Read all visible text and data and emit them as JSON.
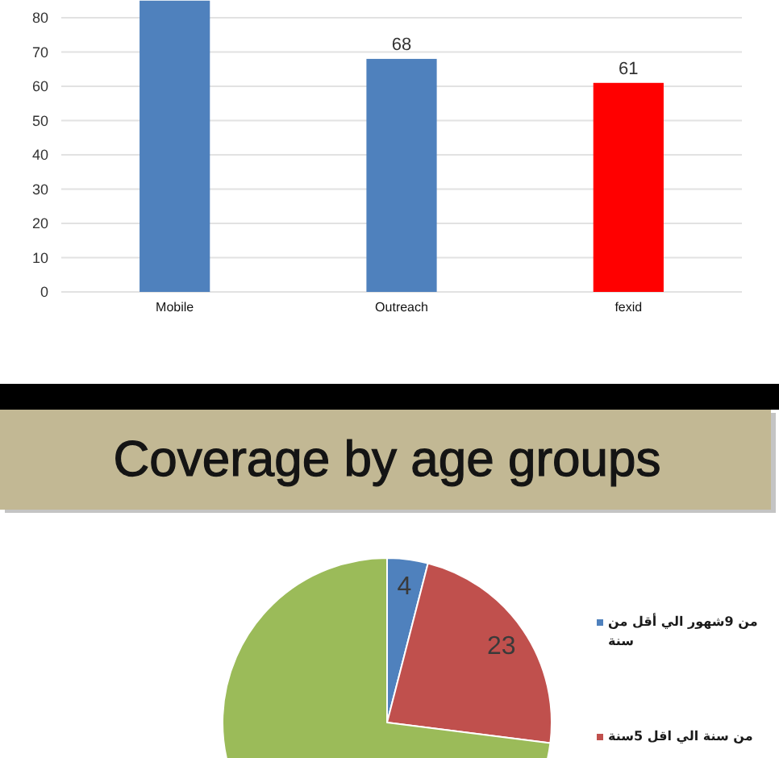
{
  "chart_data": [
    {
      "type": "bar",
      "categories": [
        "Mobile",
        "Outreach",
        "fexid"
      ],
      "values": [
        85,
        68,
        61
      ],
      "colors": [
        "#4f81bd",
        "#4f81bd",
        "#ff0000"
      ],
      "value_labels": [
        null,
        "68",
        "61"
      ],
      "ylim": [
        0,
        85
      ],
      "yticks": [
        0,
        10,
        20,
        30,
        40,
        50,
        60,
        70,
        80
      ],
      "grid": "y"
    },
    {
      "type": "pie",
      "title": "Coverage by age groups",
      "categories": [
        "من 9شهور الي أقل من سنة",
        "من سنة الي اقل 5سنة",
        null
      ],
      "values": [
        4,
        23,
        73
      ],
      "colors": [
        "#4f81bd",
        "#c0504d",
        "#9bbb59"
      ],
      "value_labels": [
        "4",
        "23",
        null
      ],
      "legend": "right"
    }
  ]
}
